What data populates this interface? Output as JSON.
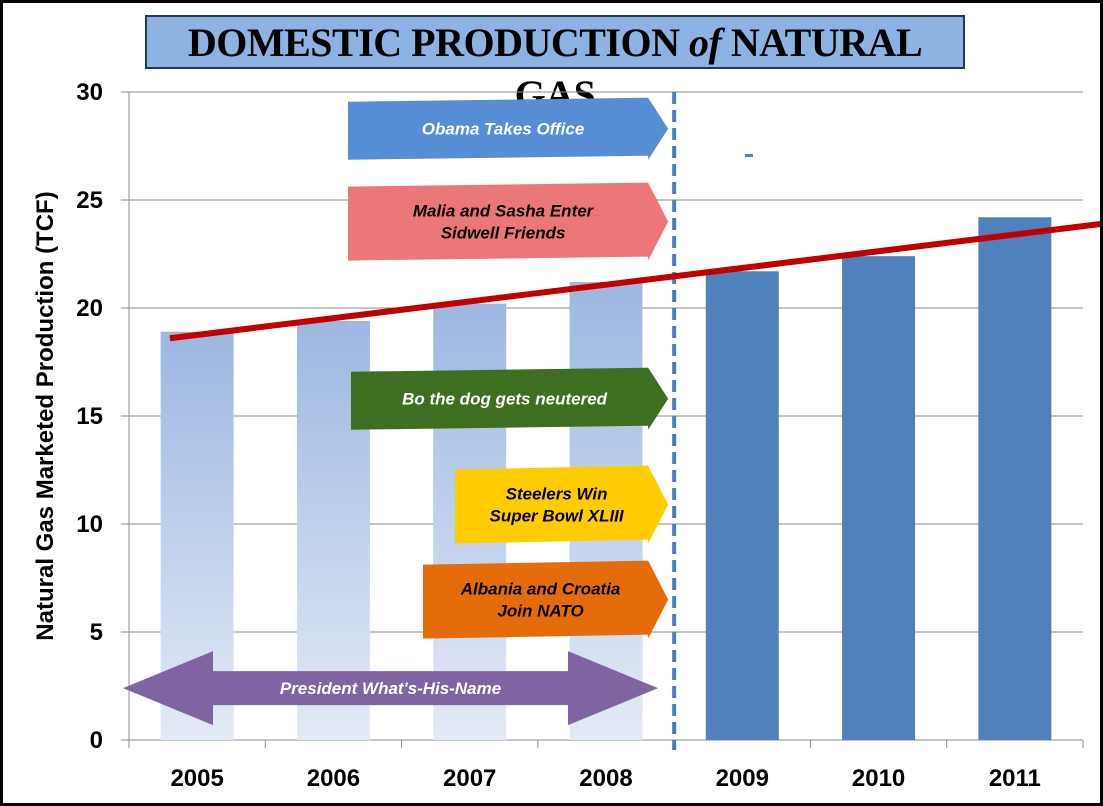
{
  "chart_data": {
    "type": "bar",
    "title_parts": [
      "DOMESTIC PRODUCTION ",
      "of",
      " NATURAL GAS"
    ],
    "ylabel": "Natural Gas Marketed Production (TCF)",
    "xlabel": "",
    "ylim": [
      0,
      30
    ],
    "yticks": [
      "0",
      "5",
      "10",
      "15",
      "20",
      "25",
      "30"
    ],
    "grid": true,
    "categories": [
      "2005",
      "2006",
      "2007",
      "2008",
      "2009",
      "2010",
      "2011"
    ],
    "values": [
      18.9,
      19.4,
      20.2,
      21.2,
      21.7,
      22.4,
      24.2
    ],
    "bar_colors": [
      "#9db7e2",
      "#9db7e2",
      "#9db7e2",
      "#9db7e2",
      "#4f81bd",
      "#4f81bd",
      "#4f81bd"
    ],
    "trend_line": {
      "color": "#c00000",
      "from": [
        2004.8,
        18.6
      ],
      "to": [
        2011.9,
        24.1
      ]
    },
    "divider_between": [
      "2008",
      "2009"
    ],
    "annotations": [
      {
        "lines": [
          "Obama Takes Office"
        ],
        "fill": "#558ed5",
        "text_color": "#ffffff",
        "italic": false,
        "y_value": 28.3
      },
      {
        "lines": [
          "Malia and Sasha Enter",
          "Sidwell Friends"
        ],
        "fill": "#ec7779",
        "text_color": "#000000",
        "italic": true,
        "y_value": 24.0
      },
      {
        "lines": [
          "Bo the dog gets neutered"
        ],
        "fill": "#3e6e1f",
        "text_color": "#ffffff",
        "italic": true,
        "y_value": 15.8
      },
      {
        "lines": [
          "Steelers Win",
          "Super Bowl XLIII"
        ],
        "fill": "#ffcc00",
        "text_color": "#000000",
        "italic": true,
        "y_value": 10.9
      },
      {
        "lines": [
          "Albania and Croatia",
          "Join NATO"
        ],
        "fill": "#e46c0a",
        "text_color": "#000000",
        "italic": true,
        "y_value": 6.5
      },
      {
        "lines": [
          "President What's-His-Name"
        ],
        "fill": "#8064a2",
        "text_color": "#ffffff",
        "italic": false,
        "y_value": 2.4,
        "double_headed": true
      }
    ]
  }
}
